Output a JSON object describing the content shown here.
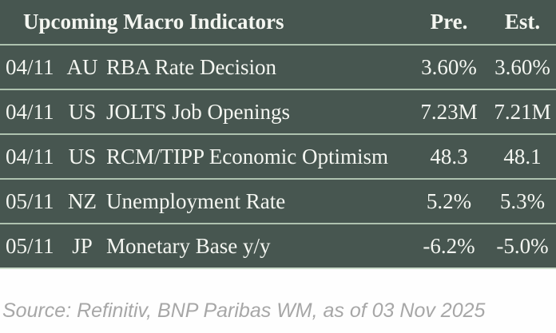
{
  "chart_data": {
    "type": "table",
    "title": "Upcoming Macro Indicators",
    "column_headers": {
      "pre": "Pre.",
      "est": "Est."
    },
    "rows": [
      {
        "date": "04/11",
        "country": "AU",
        "indicator": "RBA Rate Decision",
        "pre": "3.60%",
        "est": "3.60%"
      },
      {
        "date": "04/11",
        "country": "US",
        "indicator": "JOLTS Job Openings",
        "pre": "7.23M",
        "est": "7.21M"
      },
      {
        "date": "04/11",
        "country": "US",
        "indicator": "RCM/TIPP Economic Optimism",
        "pre": "48.3",
        "est": "48.1"
      },
      {
        "date": "05/11",
        "country": "NZ",
        "indicator": "Unemployment Rate",
        "pre": "5.2%",
        "est": "5.3%"
      },
      {
        "date": "05/11",
        "country": "JP",
        "indicator": "Monetary Base y/y",
        "pre": "-6.2%",
        "est": "-5.0%"
      }
    ],
    "source_note": "Source: Refinitiv, BNP Paribas WM, as of 03 Nov 2025",
    "layout": {
      "grid": "row-separators-only",
      "legend_position": "none"
    }
  },
  "colors": {
    "table_background": "#475650",
    "table_text": "#f4f6f1",
    "row_separator": "#aec2af",
    "table_bottom_border": "#cbdccb",
    "footer_background": "#fefefe",
    "footer_text": "#a7a7a7"
  }
}
